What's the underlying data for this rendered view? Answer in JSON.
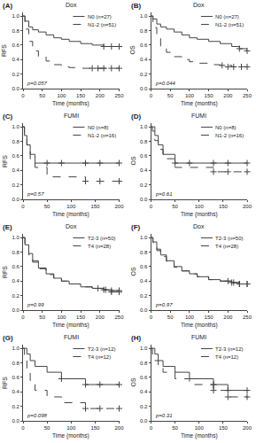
{
  "chart_data": [
    {
      "type": "step",
      "title": "Dox",
      "annotations": [
        "(A)",
        "p=0.057"
      ],
      "x_label": "Time (months)",
      "y_label": "RFS",
      "xlim": [
        0,
        250
      ],
      "xticks": [
        0,
        50,
        100,
        150,
        200,
        250
      ],
      "ylim": [
        0.0,
        1.05
      ],
      "yticks": [
        {
          "value": 0.0,
          "label": "0.0"
        },
        0.2,
        0.4,
        0.6,
        0.8,
        {
          "value": 1.0,
          "label": "1.0"
        }
      ],
      "grid": false,
      "legend": "upper right",
      "series": [
        {
          "name": "N0 (n=27)",
          "color": "#444444",
          "line_style": "solid",
          "marker": "plus",
          "x": [
            0,
            5,
            15,
            25,
            40,
            60,
            80,
            100,
            120,
            150,
            180,
            210,
            230,
            250
          ],
          "values": [
            1.0,
            0.93,
            0.85,
            0.81,
            0.78,
            0.74,
            0.7,
            0.68,
            0.65,
            0.62,
            0.6,
            0.58,
            0.58,
            0.58
          ],
          "censor_x": [
            210,
            230,
            250
          ],
          "censor_values": [
            0.58,
            0.58,
            0.58
          ]
        },
        {
          "name": "N1-2 (n=51)",
          "color": "#444444",
          "line_style": "dashed",
          "marker": "plus",
          "x": [
            0,
            5,
            15,
            25,
            40,
            60,
            80,
            100,
            120,
            150,
            180,
            210,
            230,
            250
          ],
          "values": [
            1.0,
            0.82,
            0.65,
            0.52,
            0.44,
            0.38,
            0.33,
            0.3,
            0.29,
            0.28,
            0.28,
            0.28,
            0.28,
            0.28
          ],
          "censor_x": [
            180,
            195,
            210,
            230,
            250
          ],
          "censor_values": [
            0.28,
            0.28,
            0.28,
            0.28,
            0.28
          ]
        }
      ]
    },
    {
      "type": "step",
      "title": "Dox",
      "annotations": [
        "(B)",
        "p=0.044"
      ],
      "x_label": "Time (months)",
      "y_label": "OS",
      "xlim": [
        0,
        250
      ],
      "xticks": [
        0,
        50,
        100,
        150,
        200,
        250
      ],
      "ylim": [
        0.0,
        1.05
      ],
      "yticks": [
        {
          "value": 0.0,
          "label": "0.0"
        },
        0.2,
        0.4,
        0.6,
        0.8,
        {
          "value": 1.0,
          "label": "1.0"
        }
      ],
      "grid": false,
      "legend": "upper right",
      "series": [
        {
          "name": "N0 (n=27)",
          "color": "#444444",
          "line_style": "solid",
          "marker": "plus",
          "x": [
            0,
            5,
            15,
            25,
            40,
            60,
            80,
            100,
            120,
            150,
            180,
            210,
            230,
            250
          ],
          "values": [
            1.0,
            0.96,
            0.89,
            0.85,
            0.82,
            0.78,
            0.74,
            0.7,
            0.68,
            0.65,
            0.62,
            0.58,
            0.55,
            0.52
          ],
          "censor_x": [
            230,
            250
          ],
          "censor_values": [
            0.55,
            0.52
          ]
        },
        {
          "name": "N1-2 (n=51)",
          "color": "#444444",
          "line_style": "dashed",
          "marker": "plus",
          "x": [
            0,
            5,
            15,
            25,
            40,
            60,
            80,
            100,
            120,
            150,
            180,
            210,
            230,
            250
          ],
          "values": [
            1.0,
            0.84,
            0.7,
            0.58,
            0.5,
            0.44,
            0.4,
            0.37,
            0.35,
            0.33,
            0.32,
            0.3,
            0.3,
            0.3
          ],
          "censor_x": [
            185,
            200,
            215,
            235,
            250
          ],
          "censor_values": [
            0.32,
            0.3,
            0.3,
            0.3,
            0.3
          ]
        }
      ]
    },
    {
      "type": "step",
      "title": "FUMI",
      "annotations": [
        "(C)",
        "p=0.57"
      ],
      "x_label": "Time (months)",
      "y_label": "RFS",
      "xlim": [
        0,
        200
      ],
      "xticks": [
        0,
        50,
        100,
        150,
        200
      ],
      "ylim": [
        0.0,
        1.05
      ],
      "yticks": [
        {
          "value": 0.0,
          "label": "0.0"
        },
        0.2,
        0.4,
        0.6,
        0.8,
        {
          "value": 1.0,
          "label": "1.0"
        }
      ],
      "grid": false,
      "legend": "upper right",
      "series": [
        {
          "name": "N0 (n=8)",
          "color": "#444444",
          "line_style": "solid",
          "marker": "plus",
          "x": [
            0,
            3,
            8,
            15,
            25,
            50,
            80,
            130,
            160,
            200
          ],
          "values": [
            1.0,
            0.88,
            0.75,
            0.62,
            0.5,
            0.5,
            0.5,
            0.5,
            0.5,
            0.5
          ],
          "censor_x": [
            50,
            80,
            130,
            160,
            200
          ],
          "censor_values": [
            0.5,
            0.5,
            0.5,
            0.5,
            0.5
          ]
        },
        {
          "name": "N1-2 (n=16)",
          "color": "#444444",
          "line_style": "dashed",
          "marker": "plus",
          "x": [
            0,
            3,
            8,
            15,
            25,
            50,
            80,
            130,
            160,
            200
          ],
          "values": [
            1.0,
            0.88,
            0.75,
            0.56,
            0.44,
            0.31,
            0.31,
            0.25,
            0.25,
            0.25
          ],
          "censor_x": [
            130,
            160,
            200
          ],
          "censor_values": [
            0.25,
            0.25,
            0.25
          ]
        }
      ]
    },
    {
      "type": "step",
      "title": "FUMI",
      "annotations": [
        "(D)",
        "p=0.61"
      ],
      "x_label": "Time (months)",
      "y_label": "OS",
      "xlim": [
        0,
        200
      ],
      "xticks": [
        0,
        50,
        100,
        150,
        200
      ],
      "ylim": [
        0.0,
        1.05
      ],
      "yticks": [
        {
          "value": 0.0,
          "label": "0.0"
        },
        0.2,
        0.4,
        0.6,
        0.8,
        {
          "value": 1.0,
          "label": "1.0"
        }
      ],
      "grid": false,
      "legend": "upper right",
      "series": [
        {
          "name": "N0 (n=8)",
          "color": "#444444",
          "line_style": "solid",
          "marker": "plus",
          "x": [
            0,
            3,
            8,
            15,
            25,
            50,
            80,
            130,
            160,
            200
          ],
          "values": [
            1.0,
            1.0,
            0.88,
            0.75,
            0.62,
            0.5,
            0.5,
            0.5,
            0.5,
            0.5
          ],
          "censor_x": [
            50,
            80,
            130,
            160,
            200
          ],
          "censor_values": [
            0.5,
            0.5,
            0.5,
            0.5,
            0.5
          ]
        },
        {
          "name": "N1-2 (n=16)",
          "color": "#444444",
          "line_style": "dashed",
          "marker": "plus",
          "x": [
            0,
            3,
            8,
            15,
            25,
            50,
            80,
            130,
            160,
            200
          ],
          "values": [
            1.0,
            0.94,
            0.81,
            0.69,
            0.56,
            0.44,
            0.44,
            0.38,
            0.38,
            0.38
          ],
          "censor_x": [
            130,
            160,
            200
          ],
          "censor_values": [
            0.38,
            0.38,
            0.38
          ]
        }
      ]
    },
    {
      "type": "step",
      "title": "Dox",
      "annotations": [
        "(E)",
        "p=0.99"
      ],
      "x_label": "Time (months)",
      "y_label": "RFS",
      "xlim": [
        0,
        250
      ],
      "xticks": [
        0,
        50,
        100,
        150,
        200,
        250
      ],
      "ylim": [
        0.0,
        1.05
      ],
      "yticks": [
        {
          "value": 0.0,
          "label": "0.0"
        },
        0.2,
        0.4,
        0.6,
        0.8,
        {
          "value": 1.0,
          "label": "1.0"
        }
      ],
      "grid": false,
      "legend": "upper right",
      "series": [
        {
          "name": "T2-3 (n=50)",
          "color": "#444444",
          "line_style": "solid",
          "marker": "plus",
          "x": [
            0,
            5,
            15,
            25,
            40,
            60,
            80,
            100,
            120,
            150,
            180,
            210,
            230,
            250
          ],
          "values": [
            1.0,
            0.9,
            0.78,
            0.68,
            0.58,
            0.5,
            0.44,
            0.4,
            0.36,
            0.32,
            0.3,
            0.28,
            0.27,
            0.27
          ],
          "censor_x": [
            210,
            230,
            250
          ],
          "censor_values": [
            0.28,
            0.27,
            0.27
          ]
        },
        {
          "name": "T4 (n=28)",
          "color": "#444444",
          "line_style": "dashed",
          "marker": "plus",
          "x": [
            0,
            5,
            15,
            25,
            40,
            60,
            80,
            100,
            120,
            150,
            180,
            210,
            230,
            250
          ],
          "values": [
            1.0,
            0.89,
            0.76,
            0.66,
            0.57,
            0.49,
            0.44,
            0.4,
            0.36,
            0.32,
            0.3,
            0.28,
            0.25,
            0.25
          ],
          "censor_x": [
            195,
            215,
            230,
            250
          ],
          "censor_values": [
            0.3,
            0.28,
            0.25,
            0.25
          ]
        }
      ]
    },
    {
      "type": "step",
      "title": "Dox",
      "annotations": [
        "(F)",
        "p=0.97"
      ],
      "x_label": "Time (months)",
      "y_label": "OS",
      "xlim": [
        0,
        250
      ],
      "xticks": [
        0,
        50,
        100,
        150,
        200,
        250
      ],
      "ylim": [
        0.0,
        1.05
      ],
      "yticks": [
        {
          "value": 0.0,
          "label": "0.0"
        },
        0.2,
        0.4,
        0.6,
        0.8,
        {
          "value": 1.0,
          "label": "1.0"
        }
      ],
      "grid": false,
      "legend": "upper right",
      "series": [
        {
          "name": "T2-3 (n=50)",
          "color": "#444444",
          "line_style": "solid",
          "marker": "plus",
          "x": [
            0,
            5,
            15,
            25,
            40,
            60,
            80,
            100,
            120,
            150,
            180,
            210,
            230,
            250
          ],
          "values": [
            1.0,
            0.94,
            0.84,
            0.76,
            0.68,
            0.6,
            0.54,
            0.5,
            0.46,
            0.42,
            0.4,
            0.38,
            0.36,
            0.36
          ],
          "censor_x": [
            210,
            230,
            250
          ],
          "censor_values": [
            0.38,
            0.36,
            0.36
          ]
        },
        {
          "name": "T4 (n=28)",
          "color": "#444444",
          "line_style": "dashed",
          "marker": "plus",
          "x": [
            0,
            5,
            15,
            25,
            40,
            60,
            80,
            100,
            120,
            150,
            180,
            210,
            230,
            250
          ],
          "values": [
            1.0,
            0.93,
            0.82,
            0.74,
            0.67,
            0.59,
            0.54,
            0.5,
            0.46,
            0.42,
            0.4,
            0.38,
            0.36,
            0.36
          ],
          "censor_x": [
            200,
            215,
            230,
            250
          ],
          "censor_values": [
            0.4,
            0.38,
            0.36,
            0.36
          ]
        }
      ]
    },
    {
      "type": "step",
      "title": "FUMI",
      "annotations": [
        "(G)",
        "p=0.098"
      ],
      "x_label": "Time (months)",
      "y_label": "RFS",
      "xlim": [
        0,
        200
      ],
      "xticks": [
        0,
        50,
        100,
        150,
        200
      ],
      "ylim": [
        0.0,
        1.05
      ],
      "yticks": [
        {
          "value": 0.0,
          "label": "0.0"
        },
        0.2,
        0.4,
        0.6,
        0.8,
        {
          "value": 1.0,
          "label": "1.0"
        }
      ],
      "grid": false,
      "legend": "upper right",
      "series": [
        {
          "name": "T2-3 (n=12)",
          "color": "#444444",
          "line_style": "solid",
          "marker": "plus",
          "x": [
            0,
            3,
            8,
            15,
            25,
            50,
            80,
            130,
            160,
            200
          ],
          "values": [
            1.0,
            1.0,
            0.92,
            0.83,
            0.75,
            0.67,
            0.58,
            0.5,
            0.5,
            0.5
          ],
          "censor_x": [
            80,
            130,
            160,
            200
          ],
          "censor_values": [
            0.58,
            0.5,
            0.5,
            0.5
          ]
        },
        {
          "name": "T4 (n=12)",
          "color": "#444444",
          "line_style": "dashed",
          "marker": "plus",
          "x": [
            0,
            3,
            8,
            15,
            25,
            50,
            80,
            130,
            160,
            200
          ],
          "values": [
            1.0,
            0.83,
            0.67,
            0.5,
            0.42,
            0.33,
            0.25,
            0.17,
            0.17,
            0.17
          ],
          "censor_x": [
            130,
            160,
            200
          ],
          "censor_values": [
            0.17,
            0.17,
            0.17
          ]
        }
      ]
    },
    {
      "type": "step",
      "title": "FUMI",
      "annotations": [
        "(H)",
        "p=0.31"
      ],
      "x_label": "Time (months)",
      "y_label": "OS",
      "xlim": [
        0,
        200
      ],
      "xticks": [
        0,
        50,
        100,
        150,
        200
      ],
      "ylim": [
        0.0,
        1.05
      ],
      "yticks": [
        {
          "value": 0.0,
          "label": "0.0"
        },
        0.2,
        0.4,
        0.6,
        0.8,
        {
          "value": 1.0,
          "label": "1.0"
        }
      ],
      "grid": false,
      "legend": "upper right",
      "series": [
        {
          "name": "T2-3 (n=12)",
          "color": "#444444",
          "line_style": "solid",
          "marker": "plus",
          "x": [
            0,
            3,
            8,
            15,
            25,
            50,
            80,
            130,
            160,
            200
          ],
          "values": [
            1.0,
            1.0,
            0.92,
            0.83,
            0.75,
            0.67,
            0.58,
            0.5,
            0.42,
            0.42
          ],
          "censor_x": [
            130,
            160,
            200
          ],
          "censor_values": [
            0.5,
            0.42,
            0.42
          ]
        },
        {
          "name": "T4 (n=12)",
          "color": "#444444",
          "line_style": "dashed",
          "marker": "plus",
          "x": [
            0,
            3,
            8,
            15,
            25,
            50,
            80,
            130,
            160,
            200
          ],
          "values": [
            1.0,
            0.92,
            0.83,
            0.75,
            0.67,
            0.58,
            0.5,
            0.42,
            0.33,
            0.33
          ],
          "censor_x": [
            130,
            160,
            200
          ],
          "censor_values": [
            0.42,
            0.33,
            0.33
          ]
        }
      ]
    }
  ]
}
